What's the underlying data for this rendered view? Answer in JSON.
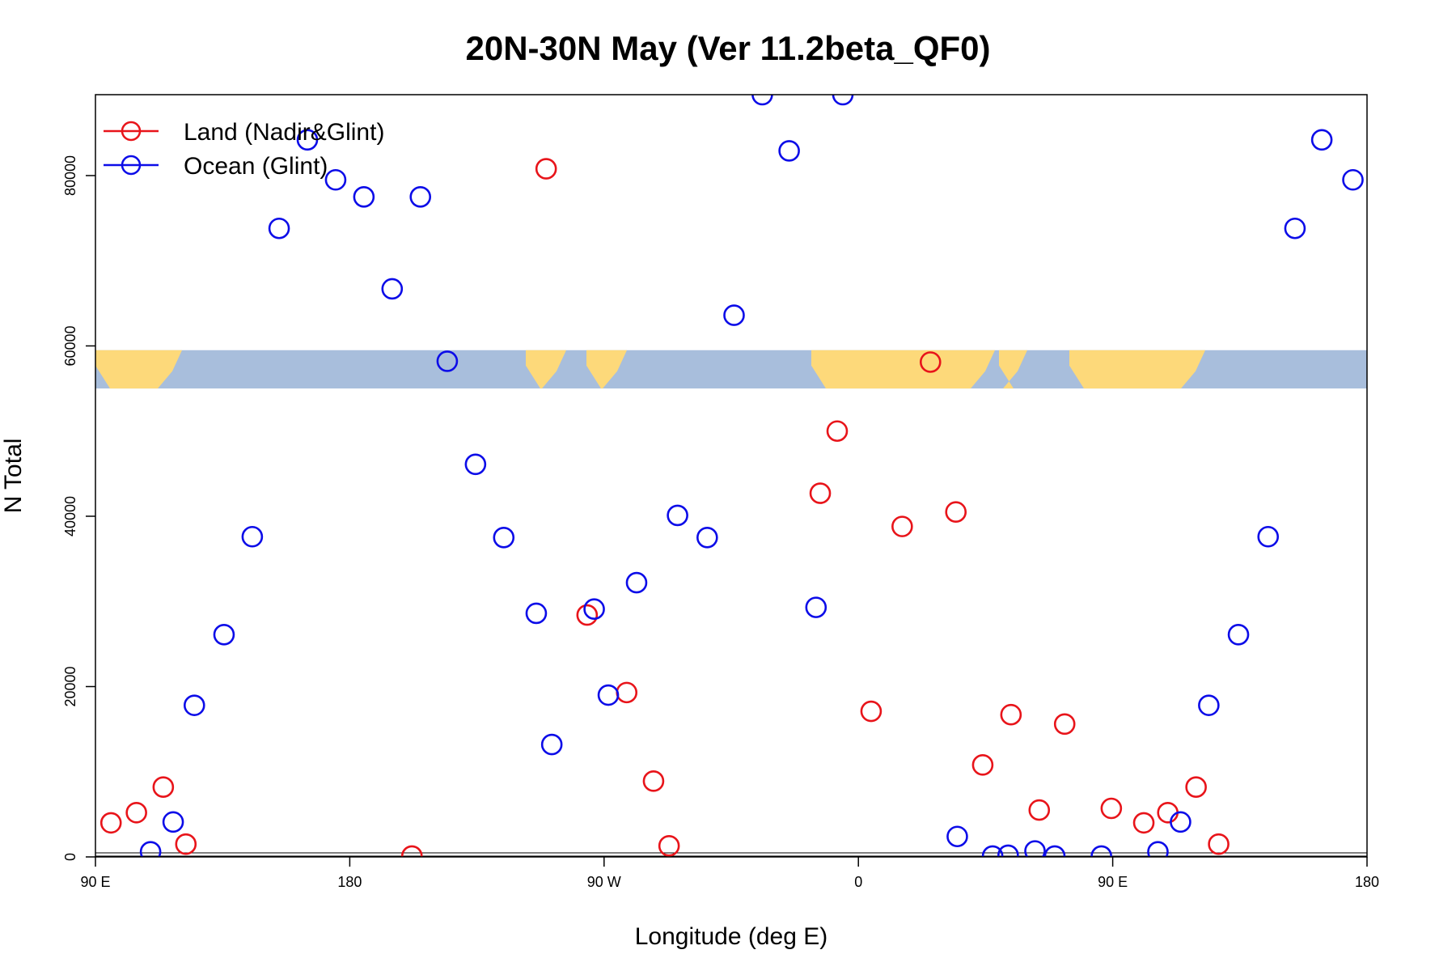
{
  "chart_data": {
    "type": "scatter",
    "title": "20N-30N May (Ver 11.2beta_QF0)",
    "xlabel": "Longitude (deg E)",
    "ylabel": "N Total",
    "x_ticks": [
      {
        "value": 90,
        "label": "90 E"
      },
      {
        "value": 180,
        "label": "180"
      },
      {
        "value": 270,
        "label": "90 W"
      },
      {
        "value": 360,
        "label": "0"
      },
      {
        "value": 450,
        "label": "90 E"
      },
      {
        "value": 540,
        "label": "180"
      }
    ],
    "y_ticks": [
      {
        "value": 0,
        "label": "0"
      },
      {
        "value": 20000,
        "label": "20000"
      },
      {
        "value": 40000,
        "label": "40000"
      },
      {
        "value": 60000,
        "label": "60000"
      },
      {
        "value": 80000,
        "label": "80000"
      }
    ],
    "xlim": [
      90,
      540
    ],
    "ylim": [
      0,
      89500
    ],
    "legend_position": "top-left",
    "grid": false,
    "map_strip": {
      "y_range": [
        55000,
        59500
      ],
      "ocean_color": "#a8bedc",
      "land_color": "#fdd97a"
    },
    "series": [
      {
        "name": "Land (Nadir&Glint)",
        "color": "#e8141a",
        "x": [
          95.5,
          104.5,
          114,
          122,
          202,
          249.5,
          264,
          278,
          287.5,
          293,
          346.5,
          352.5,
          364.5,
          375.5,
          385.5,
          394.5,
          404,
          414,
          424,
          433,
          449.5,
          461,
          469.5,
          479.5,
          487.5
        ],
        "y": [
          4000,
          5200,
          8200,
          1500,
          100,
          80800,
          28400,
          19300,
          8900,
          1300,
          42700,
          50000,
          17100,
          38800,
          58100,
          40500,
          10800,
          16700,
          5500,
          15600,
          5700,
          4000,
          5200,
          8200,
          1500
        ]
      },
      {
        "name": "Ocean (Glint)",
        "color": "#0c0ce8",
        "x": [
          109.5,
          117.5,
          125,
          135.5,
          145.5,
          155,
          165,
          175,
          185,
          195,
          205,
          214.5,
          224.5,
          234.5,
          246,
          251.5,
          266.5,
          271.5,
          281.5,
          296,
          306.5,
          316,
          326,
          335.5,
          345,
          354.5,
          395,
          407.5,
          413,
          422.5,
          429.5,
          446,
          466,
          474,
          484,
          494.5,
          505,
          514.5,
          524,
          535
        ],
        "y": [
          600,
          4100,
          17800,
          26100,
          37600,
          73800,
          84200,
          79500,
          77500,
          66700,
          77500,
          58200,
          46100,
          37500,
          28600,
          13200,
          29100,
          19000,
          32200,
          40100,
          37500,
          63600,
          89500,
          82900,
          29300,
          89500,
          2400,
          100,
          200,
          700,
          100,
          100,
          600,
          4100,
          17800,
          26100,
          37600,
          73800,
          84200,
          79500
        ]
      }
    ]
  }
}
